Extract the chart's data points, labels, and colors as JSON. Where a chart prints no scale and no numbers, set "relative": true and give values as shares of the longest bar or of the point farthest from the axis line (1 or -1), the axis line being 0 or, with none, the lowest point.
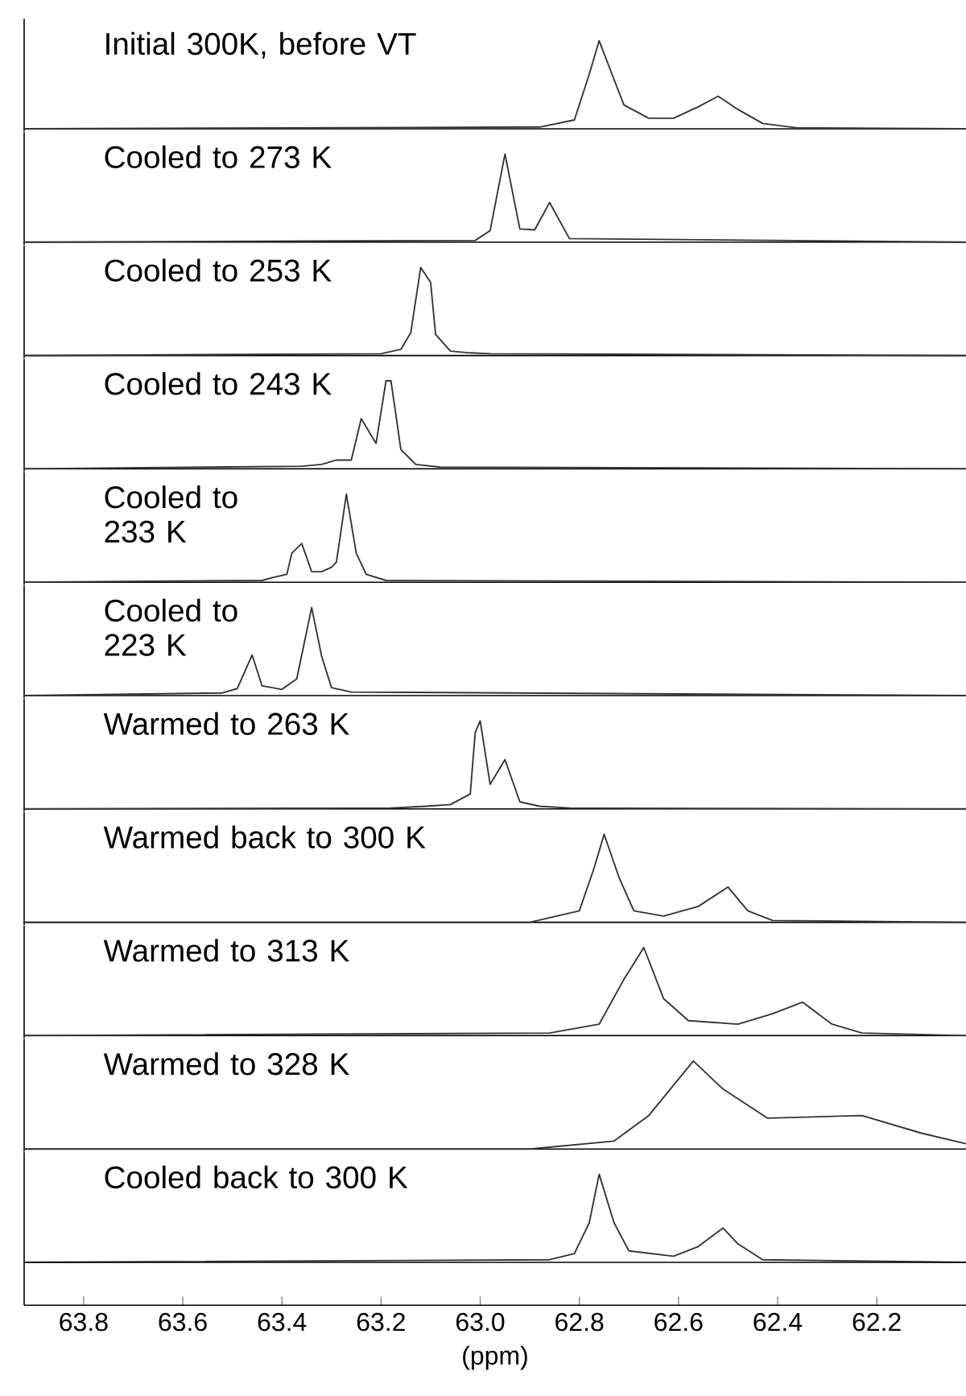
{
  "chart_data": [
    {
      "type": "line",
      "title": "Initial 300K, before VT",
      "relative": true,
      "xlim": [
        63.92,
        62.02
      ],
      "tick_labels": false,
      "series": [
        {
          "color": "#333333",
          "x": [
            63.92,
            62.88,
            62.81,
            62.78,
            62.76,
            62.73,
            62.71,
            62.66,
            62.61,
            62.56,
            62.52,
            62.48,
            62.43,
            62.36,
            62.02
          ],
          "values": [
            0,
            0.02,
            0.1,
            0.62,
            1,
            0.56,
            0.27,
            0.12,
            0.12,
            0.25,
            0.37,
            0.22,
            0.06,
            0.01,
            0
          ]
        }
      ]
    },
    {
      "type": "line",
      "title": "Cooled to 273 K",
      "relative": true,
      "xlim": [
        63.92,
        62.02
      ],
      "tick_labels": false,
      "series": [
        {
          "color": "#333333",
          "x": [
            63.92,
            63.01,
            62.98,
            62.95,
            62.92,
            62.89,
            62.86,
            62.82,
            62.02
          ],
          "values": [
            0,
            0.02,
            0.13,
            1,
            0.15,
            0.14,
            0.45,
            0.04,
            0
          ]
        }
      ]
    },
    {
      "type": "line",
      "title": "Cooled to 253 K",
      "relative": true,
      "xlim": [
        63.92,
        62.02
      ],
      "tick_labels": false,
      "series": [
        {
          "color": "#333333",
          "x": [
            63.92,
            63.2,
            63.16,
            63.14,
            63.12,
            63.1,
            63.09,
            63.06,
            63.02,
            62.98,
            62.02
          ],
          "values": [
            0,
            0.02,
            0.07,
            0.26,
            1,
            0.83,
            0.24,
            0.05,
            0.03,
            0.02,
            0
          ]
        }
      ]
    },
    {
      "type": "line",
      "title": "Cooled to 243 K",
      "relative": true,
      "xlim": [
        63.92,
        62.02
      ],
      "tick_labels": false,
      "series": [
        {
          "color": "#333333",
          "x": [
            63.92,
            63.36,
            63.32,
            63.29,
            63.26,
            63.24,
            63.21,
            63.19,
            63.18,
            63.16,
            63.13,
            63.08,
            62.02
          ],
          "values": [
            0,
            0.03,
            0.05,
            0.1,
            0.1,
            0.57,
            0.29,
            1,
            1,
            0.22,
            0.05,
            0.02,
            0
          ]
        }
      ]
    },
    {
      "type": "line",
      "title": "Cooled to 233 K",
      "relative": true,
      "xlim": [
        63.92,
        62.02
      ],
      "tick_labels": false,
      "series": [
        {
          "color": "#333333",
          "x": [
            63.92,
            63.44,
            63.42,
            63.39,
            63.38,
            63.36,
            63.34,
            63.32,
            63.3,
            63.29,
            63.27,
            63.25,
            63.23,
            63.19,
            62.02
          ],
          "values": [
            0,
            0.02,
            0.05,
            0.09,
            0.33,
            0.44,
            0.12,
            0.12,
            0.17,
            0.23,
            1,
            0.33,
            0.09,
            0.02,
            0
          ]
        }
      ]
    },
    {
      "type": "line",
      "title": "Cooled to 223 K",
      "relative": true,
      "xlim": [
        63.92,
        62.02
      ],
      "tick_labels": false,
      "series": [
        {
          "color": "#333333",
          "x": [
            63.92,
            63.52,
            63.49,
            63.46,
            63.44,
            63.4,
            63.37,
            63.34,
            63.32,
            63.3,
            63.26,
            62.02
          ],
          "values": [
            0,
            0.03,
            0.08,
            0.46,
            0.11,
            0.07,
            0.19,
            1,
            0.45,
            0.09,
            0.04,
            0
          ]
        }
      ]
    },
    {
      "type": "line",
      "title": "Warmed to 263 K",
      "relative": true,
      "xlim": [
        63.92,
        62.02
      ],
      "tick_labels": false,
      "series": [
        {
          "color": "#333333",
          "x": [
            63.92,
            63.18,
            63.11,
            63.06,
            63.02,
            63.01,
            63.0,
            62.98,
            62.95,
            62.92,
            62.88,
            62.82,
            62.02
          ],
          "values": [
            0,
            0.01,
            0.03,
            0.05,
            0.17,
            0.87,
            1,
            0.28,
            0.56,
            0.08,
            0.03,
            0.01,
            0
          ]
        }
      ]
    },
    {
      "type": "line",
      "title": "Warmed back to 300 K",
      "relative": true,
      "xlim": [
        63.92,
        62.02
      ],
      "tick_labels": false,
      "series": [
        {
          "color": "#333333",
          "x": [
            63.92,
            62.9,
            62.8,
            62.77,
            62.75,
            62.72,
            62.69,
            62.63,
            62.56,
            62.5,
            62.46,
            62.41,
            62.02
          ],
          "values": [
            0,
            0,
            0.13,
            0.62,
            1,
            0.51,
            0.13,
            0.07,
            0.18,
            0.4,
            0.13,
            0.02,
            0
          ]
        }
      ]
    },
    {
      "type": "line",
      "title": "Warmed to 313 K",
      "relative": true,
      "xlim": [
        63.92,
        62.02
      ],
      "tick_labels": false,
      "series": [
        {
          "color": "#333333",
          "x": [
            63.92,
            62.86,
            62.76,
            62.71,
            62.67,
            62.63,
            62.58,
            62.48,
            62.41,
            62.35,
            62.29,
            62.23,
            62.02
          ],
          "values": [
            0,
            0.03,
            0.13,
            0.64,
            1,
            0.42,
            0.17,
            0.13,
            0.25,
            0.38,
            0.13,
            0.03,
            0
          ]
        }
      ]
    },
    {
      "type": "line",
      "title": "Warmed to 328 K",
      "relative": true,
      "xlim": [
        63.92,
        62.02
      ],
      "tick_labels": false,
      "series": [
        {
          "color": "#333333",
          "x": [
            63.92,
            62.9,
            62.73,
            62.66,
            62.57,
            62.51,
            62.42,
            62.23,
            62.11,
            62.02
          ],
          "values": [
            0,
            0,
            0.09,
            0.38,
            1,
            0.68,
            0.35,
            0.38,
            0.18,
            0.06
          ]
        }
      ]
    },
    {
      "type": "line",
      "title": "Cooled back to 300 K",
      "xlabel": "(ppm)",
      "relative": true,
      "xlim": [
        63.92,
        62.02
      ],
      "tick_labels": "x",
      "xticks": [
        63.8,
        63.6,
        63.4,
        63.2,
        {
          "value": 63.0,
          "label": "63.0"
        },
        62.8,
        62.6,
        62.4,
        62.2
      ],
      "series": [
        {
          "color": "#333333",
          "x": [
            63.92,
            62.86,
            62.81,
            62.78,
            62.76,
            62.73,
            62.7,
            62.61,
            62.56,
            62.51,
            62.48,
            62.43,
            62.02
          ],
          "values": [
            0,
            0.03,
            0.1,
            0.45,
            1,
            0.45,
            0.13,
            0.07,
            0.18,
            0.39,
            0.21,
            0.03,
            0
          ]
        }
      ]
    }
  ]
}
